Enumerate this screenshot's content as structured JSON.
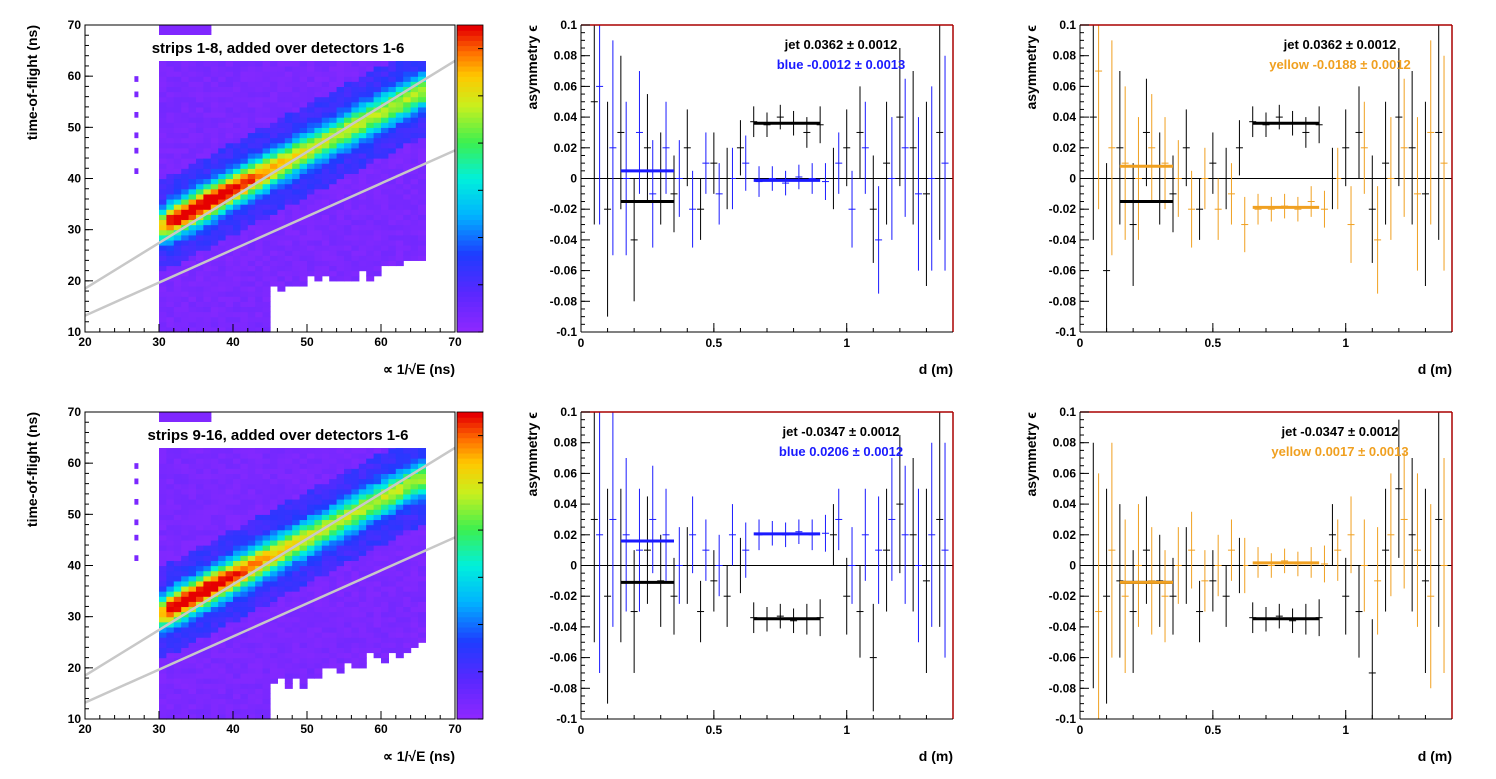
{
  "colors": {
    "jet": "#000000",
    "blue": "#1a1aff",
    "yellow": "#f0a020",
    "frame": "#aa0000",
    "line": "#c8c8c8"
  },
  "chart_data": [
    {
      "type": "heatmap",
      "panel": "top-left",
      "title": "strips 1-8, added over detectors 1-6",
      "xlabel": "∝ 1/√E (ns)",
      "ylabel": "time-of-flight (ns)",
      "xlim": [
        20,
        70
      ],
      "ylim": [
        10,
        70
      ],
      "xticks": [
        "20",
        "30",
        "40",
        "50",
        "60",
        "70"
      ],
      "yticks": [
        "10",
        "20",
        "30",
        "40",
        "50",
        "60",
        "70"
      ],
      "cut_lines": [
        {
          "x": [
            20,
            70
          ],
          "y": [
            18.5,
            63
          ]
        },
        {
          "x": [
            20,
            70
          ],
          "y": [
            13.2,
            45.5
          ]
        }
      ],
      "peak": {
        "x": 36,
        "y": 28
      }
    },
    {
      "type": "scatter",
      "panel": "top-middle",
      "xlabel": "d (m)",
      "ylabel": "asymmetry ϵ",
      "xlim": [
        0,
        1.4
      ],
      "ylim": [
        -0.1,
        0.1
      ],
      "xticks": [
        "0",
        "0.5",
        "1"
      ],
      "yticks": [
        "-0.1",
        "-0.08",
        "-0.06",
        "-0.04",
        "-0.02",
        "0",
        "0.02",
        "0.04",
        "0.06",
        "0.08",
        "0.1"
      ],
      "legend": [
        {
          "label": "jet  0.0362 ± 0.0012",
          "color": "jet"
        },
        {
          "label": "blue -0.0012 ± 0.0013",
          "color": "blue"
        }
      ],
      "fits": [
        {
          "series": "jet",
          "x": [
            0.15,
            0.35
          ],
          "y": -0.015
        },
        {
          "series": "jet",
          "x": [
            0.65,
            0.9
          ],
          "y": 0.036
        },
        {
          "series": "blue",
          "x": [
            0.15,
            0.35
          ],
          "y": 0.005
        },
        {
          "series": "blue",
          "x": [
            0.65,
            0.9
          ],
          "y": -0.0012
        }
      ],
      "series": [
        {
          "name": "jet",
          "x": [
            0.05,
            0.1,
            0.15,
            0.2,
            0.25,
            0.3,
            0.35,
            0.4,
            0.45,
            0.5,
            0.55,
            0.6,
            0.65,
            0.7,
            0.75,
            0.8,
            0.85,
            0.9,
            0.95,
            1.0,
            1.05,
            1.1,
            1.15,
            1.2,
            1.25,
            1.3,
            1.35
          ],
          "y": [
            0.05,
            -0.02,
            0.03,
            -0.04,
            0.02,
            0.0,
            -0.01,
            0.02,
            -0.02,
            0.01,
            0.0,
            0.02,
            0.037,
            0.035,
            0.04,
            0.036,
            0.03,
            0.035,
            0.0,
            0.02,
            0.03,
            -0.02,
            0.01,
            0.04,
            0.02,
            -0.01,
            0.03
          ],
          "err": [
            0.08,
            0.07,
            0.05,
            0.04,
            0.035,
            0.03,
            0.025,
            0.025,
            0.02,
            0.02,
            0.02,
            0.018,
            0.01,
            0.008,
            0.008,
            0.008,
            0.01,
            0.012,
            0.02,
            0.025,
            0.03,
            0.035,
            0.04,
            0.045,
            0.05,
            0.06,
            0.07
          ]
        },
        {
          "name": "blue",
          "x": [
            0.07,
            0.12,
            0.17,
            0.22,
            0.27,
            0.32,
            0.37,
            0.42,
            0.47,
            0.52,
            0.57,
            0.62,
            0.67,
            0.72,
            0.77,
            0.82,
            0.87,
            0.92,
            0.97,
            1.02,
            1.07,
            1.12,
            1.17,
            1.22,
            1.27,
            1.32,
            1.37
          ],
          "y": [
            0.06,
            0.02,
            0.0,
            0.03,
            -0.01,
            0.02,
            0.0,
            -0.02,
            0.01,
            -0.01,
            0.0,
            0.01,
            -0.002,
            0.0,
            -0.003,
            0.001,
            0.0,
            -0.002,
            0.01,
            -0.02,
            0.02,
            -0.04,
            0.0,
            0.02,
            -0.01,
            0.0,
            0.01
          ],
          "err": [
            0.09,
            0.07,
            0.05,
            0.04,
            0.035,
            0.03,
            0.025,
            0.025,
            0.02,
            0.02,
            0.02,
            0.018,
            0.01,
            0.008,
            0.008,
            0.008,
            0.01,
            0.012,
            0.02,
            0.025,
            0.03,
            0.035,
            0.04,
            0.045,
            0.05,
            0.06,
            0.07
          ]
        }
      ]
    },
    {
      "type": "scatter",
      "panel": "top-right",
      "xlabel": "d (m)",
      "ylabel": "asymmetry ϵ",
      "xlim": [
        0,
        1.4
      ],
      "ylim": [
        -0.1,
        0.1
      ],
      "xticks": [
        "0",
        "0.5",
        "1"
      ],
      "yticks": [
        "-0.1",
        "-0.08",
        "-0.06",
        "-0.04",
        "-0.02",
        "0",
        "0.02",
        "0.04",
        "0.06",
        "0.08",
        "0.1"
      ],
      "legend": [
        {
          "label": "jet  0.0362 ± 0.0012",
          "color": "jet"
        },
        {
          "label": "yellow -0.0188 ± 0.0012",
          "color": "yellow"
        }
      ],
      "fits": [
        {
          "series": "jet",
          "x": [
            0.15,
            0.35
          ],
          "y": -0.015
        },
        {
          "series": "jet",
          "x": [
            0.65,
            0.9
          ],
          "y": 0.036
        },
        {
          "series": "yellow",
          "x": [
            0.15,
            0.35
          ],
          "y": 0.008
        },
        {
          "series": "yellow",
          "x": [
            0.65,
            0.9
          ],
          "y": -0.0188
        }
      ],
      "series": [
        {
          "name": "jet",
          "x": [
            0.05,
            0.1,
            0.15,
            0.2,
            0.25,
            0.3,
            0.35,
            0.4,
            0.45,
            0.5,
            0.55,
            0.6,
            0.65,
            0.7,
            0.75,
            0.8,
            0.85,
            0.9,
            0.95,
            1.0,
            1.05,
            1.1,
            1.15,
            1.2,
            1.25,
            1.3,
            1.35
          ],
          "y": [
            0.04,
            -0.06,
            0.02,
            -0.03,
            0.03,
            0.0,
            -0.01,
            0.02,
            -0.02,
            0.01,
            0.0,
            0.02,
            0.037,
            0.035,
            0.04,
            0.036,
            0.03,
            0.035,
            0.0,
            0.02,
            0.03,
            -0.02,
            0.01,
            0.04,
            0.02,
            -0.01,
            0.03
          ],
          "err": [
            0.08,
            0.07,
            0.05,
            0.04,
            0.035,
            0.03,
            0.025,
            0.025,
            0.02,
            0.02,
            0.02,
            0.018,
            0.01,
            0.008,
            0.008,
            0.008,
            0.01,
            0.012,
            0.02,
            0.025,
            0.03,
            0.035,
            0.04,
            0.045,
            0.05,
            0.06,
            0.07
          ]
        },
        {
          "name": "yellow",
          "x": [
            0.07,
            0.12,
            0.17,
            0.22,
            0.27,
            0.32,
            0.37,
            0.42,
            0.47,
            0.52,
            0.57,
            0.62,
            0.67,
            0.72,
            0.77,
            0.82,
            0.87,
            0.92,
            0.97,
            1.02,
            1.07,
            1.12,
            1.17,
            1.22,
            1.27,
            1.32,
            1.37
          ],
          "y": [
            0.07,
            0.02,
            0.01,
            0.0,
            0.02,
            0.01,
            0.0,
            -0.02,
            0.0,
            -0.02,
            -0.01,
            -0.03,
            -0.02,
            -0.02,
            -0.018,
            -0.02,
            -0.015,
            -0.02,
            0.0,
            -0.03,
            0.02,
            -0.04,
            0.0,
            0.02,
            -0.01,
            0.03,
            0.01
          ],
          "err": [
            0.09,
            0.07,
            0.05,
            0.04,
            0.035,
            0.03,
            0.025,
            0.025,
            0.02,
            0.02,
            0.02,
            0.018,
            0.01,
            0.008,
            0.008,
            0.008,
            0.01,
            0.012,
            0.02,
            0.025,
            0.03,
            0.035,
            0.04,
            0.045,
            0.05,
            0.06,
            0.07
          ]
        }
      ]
    },
    {
      "type": "heatmap",
      "panel": "bottom-left",
      "title": "strips 9-16, added over detectors 1-6",
      "xlabel": "∝ 1/√E (ns)",
      "ylabel": "time-of-flight (ns)",
      "xlim": [
        20,
        70
      ],
      "ylim": [
        10,
        70
      ],
      "xticks": [
        "20",
        "30",
        "40",
        "50",
        "60",
        "70"
      ],
      "yticks": [
        "10",
        "20",
        "30",
        "40",
        "50",
        "60",
        "70"
      ],
      "cut_lines": [
        {
          "x": [
            20,
            70
          ],
          "y": [
            18.5,
            63
          ]
        },
        {
          "x": [
            20,
            70
          ],
          "y": [
            13.2,
            45.5
          ]
        }
      ],
      "peak": {
        "x": 35,
        "y": 26
      }
    },
    {
      "type": "scatter",
      "panel": "bottom-middle",
      "xlabel": "d (m)",
      "ylabel": "asymmetry ϵ",
      "xlim": [
        0,
        1.4
      ],
      "ylim": [
        -0.1,
        0.1
      ],
      "xticks": [
        "0",
        "0.5",
        "1"
      ],
      "yticks": [
        "-0.1",
        "-0.08",
        "-0.06",
        "-0.04",
        "-0.02",
        "0",
        "0.02",
        "0.04",
        "0.06",
        "0.08",
        "0.1"
      ],
      "legend": [
        {
          "label": "jet -0.0347 ± 0.0012",
          "color": "jet"
        },
        {
          "label": "blue  0.0206 ± 0.0012",
          "color": "blue"
        }
      ],
      "fits": [
        {
          "series": "jet",
          "x": [
            0.15,
            0.35
          ],
          "y": -0.011
        },
        {
          "series": "jet",
          "x": [
            0.65,
            0.9
          ],
          "y": -0.0347
        },
        {
          "series": "blue",
          "x": [
            0.15,
            0.35
          ],
          "y": 0.016
        },
        {
          "series": "blue",
          "x": [
            0.65,
            0.9
          ],
          "y": 0.0206
        }
      ],
      "series": [
        {
          "name": "jet",
          "x": [
            0.05,
            0.1,
            0.15,
            0.2,
            0.25,
            0.3,
            0.35,
            0.4,
            0.45,
            0.5,
            0.55,
            0.6,
            0.65,
            0.7,
            0.75,
            0.8,
            0.85,
            0.9,
            0.95,
            1.0,
            1.05,
            1.1,
            1.15,
            1.2,
            1.25,
            1.3,
            1.35
          ],
          "y": [
            0.03,
            -0.02,
            0.0,
            -0.03,
            0.01,
            -0.01,
            -0.02,
            0.0,
            -0.03,
            -0.01,
            -0.02,
            0.0,
            -0.034,
            -0.035,
            -0.033,
            -0.036,
            -0.035,
            -0.034,
            0.02,
            -0.02,
            -0.03,
            -0.06,
            0.01,
            0.04,
            0.02,
            -0.01,
            0.03
          ],
          "err": [
            0.08,
            0.07,
            0.05,
            0.04,
            0.035,
            0.03,
            0.025,
            0.025,
            0.02,
            0.02,
            0.02,
            0.018,
            0.01,
            0.008,
            0.008,
            0.008,
            0.01,
            0.012,
            0.02,
            0.025,
            0.03,
            0.035,
            0.04,
            0.045,
            0.05,
            0.06,
            0.07
          ]
        },
        {
          "name": "blue",
          "x": [
            0.07,
            0.12,
            0.17,
            0.22,
            0.27,
            0.32,
            0.37,
            0.42,
            0.47,
            0.52,
            0.57,
            0.62,
            0.67,
            0.72,
            0.77,
            0.82,
            0.87,
            0.92,
            0.97,
            1.02,
            1.07,
            1.12,
            1.17,
            1.22,
            1.27,
            1.32,
            1.37
          ],
          "y": [
            0.02,
            0.03,
            0.02,
            0.01,
            0.03,
            0.02,
            0.0,
            0.02,
            0.01,
            0.0,
            0.02,
            0.01,
            0.02,
            0.021,
            0.02,
            0.022,
            0.02,
            0.021,
            0.03,
            0.0,
            0.02,
            0.01,
            0.03,
            0.02,
            0.0,
            0.02,
            0.01
          ],
          "err": [
            0.09,
            0.07,
            0.05,
            0.04,
            0.035,
            0.03,
            0.025,
            0.025,
            0.02,
            0.02,
            0.02,
            0.018,
            0.01,
            0.008,
            0.008,
            0.008,
            0.01,
            0.012,
            0.02,
            0.025,
            0.03,
            0.035,
            0.04,
            0.045,
            0.05,
            0.06,
            0.07
          ]
        }
      ]
    },
    {
      "type": "scatter",
      "panel": "bottom-right",
      "xlabel": "d (m)",
      "ylabel": "asymmetry ϵ",
      "xlim": [
        0,
        1.4
      ],
      "ylim": [
        -0.1,
        0.1
      ],
      "xticks": [
        "0",
        "0.5",
        "1"
      ],
      "yticks": [
        "-0.1",
        "-0.08",
        "-0.06",
        "-0.04",
        "-0.02",
        "0",
        "0.02",
        "0.04",
        "0.06",
        "0.08",
        "0.1"
      ],
      "legend": [
        {
          "label": "jet -0.0347 ± 0.0012",
          "color": "jet"
        },
        {
          "label": "yellow  0.0017 ± 0.0013",
          "color": "yellow"
        }
      ],
      "fits": [
        {
          "series": "jet",
          "x": [
            0.15,
            0.35
          ],
          "y": -0.011
        },
        {
          "series": "jet",
          "x": [
            0.65,
            0.9
          ],
          "y": -0.0347
        },
        {
          "series": "yellow",
          "x": [
            0.15,
            0.35
          ],
          "y": -0.011
        },
        {
          "series": "yellow",
          "x": [
            0.65,
            0.9
          ],
          "y": 0.0017
        }
      ],
      "series": [
        {
          "name": "jet",
          "x": [
            0.05,
            0.1,
            0.15,
            0.2,
            0.25,
            0.3,
            0.35,
            0.4,
            0.45,
            0.5,
            0.55,
            0.6,
            0.65,
            0.7,
            0.75,
            0.8,
            0.85,
            0.9,
            0.95,
            1.0,
            1.05,
            1.1,
            1.15,
            1.2,
            1.25,
            1.3,
            1.35
          ],
          "y": [
            0.0,
            -0.02,
            -0.01,
            -0.03,
            0.01,
            -0.01,
            -0.02,
            0.0,
            -0.03,
            -0.01,
            -0.02,
            0.0,
            -0.034,
            -0.035,
            -0.033,
            -0.036,
            -0.035,
            -0.034,
            0.02,
            -0.02,
            -0.03,
            -0.07,
            0.01,
            0.05,
            0.02,
            -0.01,
            0.03
          ],
          "err": [
            0.08,
            0.07,
            0.05,
            0.04,
            0.035,
            0.03,
            0.025,
            0.025,
            0.02,
            0.02,
            0.02,
            0.018,
            0.01,
            0.008,
            0.008,
            0.008,
            0.01,
            0.012,
            0.02,
            0.025,
            0.03,
            0.035,
            0.04,
            0.045,
            0.05,
            0.06,
            0.07
          ]
        },
        {
          "name": "yellow",
          "x": [
            0.07,
            0.12,
            0.17,
            0.22,
            0.27,
            0.32,
            0.37,
            0.42,
            0.47,
            0.52,
            0.57,
            0.62,
            0.67,
            0.72,
            0.77,
            0.82,
            0.87,
            0.92,
            0.97,
            1.02,
            1.07,
            1.12,
            1.17,
            1.22,
            1.27,
            1.32,
            1.37
          ],
          "y": [
            -0.03,
            0.01,
            -0.02,
            0.0,
            -0.01,
            -0.02,
            0.0,
            0.01,
            -0.01,
            0.0,
            0.01,
            0.0,
            0.002,
            0.0,
            0.003,
            0.001,
            0.002,
            0.001,
            0.01,
            0.02,
            0.0,
            -0.01,
            0.02,
            0.03,
            0.01,
            -0.02,
            0.0
          ],
          "err": [
            0.09,
            0.07,
            0.05,
            0.04,
            0.035,
            0.03,
            0.025,
            0.025,
            0.02,
            0.02,
            0.02,
            0.018,
            0.01,
            0.008,
            0.008,
            0.008,
            0.01,
            0.012,
            0.02,
            0.025,
            0.03,
            0.035,
            0.04,
            0.045,
            0.05,
            0.06,
            0.07
          ]
        }
      ]
    }
  ]
}
